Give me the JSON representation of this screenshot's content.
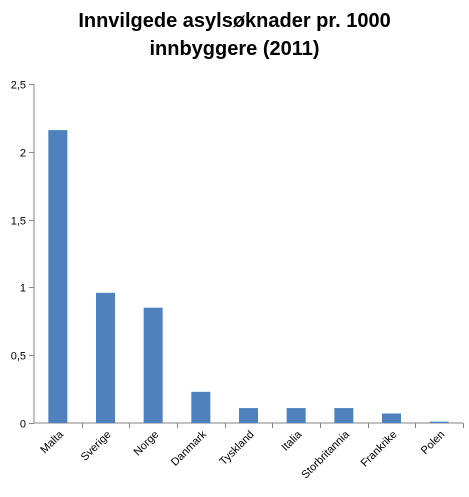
{
  "chart_data": {
    "type": "bar",
    "title_lines": [
      "Innvilgede asylsøknader pr. 1000",
      "innbyggere (2011)"
    ],
    "categories": [
      "Malta",
      "Sverige",
      "Norge",
      "Danmark",
      "Tyskland",
      "Italia",
      "Storbritannia",
      "Frankrike",
      "Polen"
    ],
    "values": [
      2.16,
      0.96,
      0.85,
      0.23,
      0.11,
      0.11,
      0.11,
      0.07,
      0.01
    ],
    "ylim": [
      0,
      2.5
    ],
    "yticks": [
      "0",
      "0,5",
      "1",
      "1,5",
      "2",
      "2,5"
    ],
    "xlabel": "",
    "ylabel": "",
    "grid": false,
    "legend": "none",
    "colors": {
      "bar": "#4F81BD",
      "axis": "#868686"
    }
  }
}
